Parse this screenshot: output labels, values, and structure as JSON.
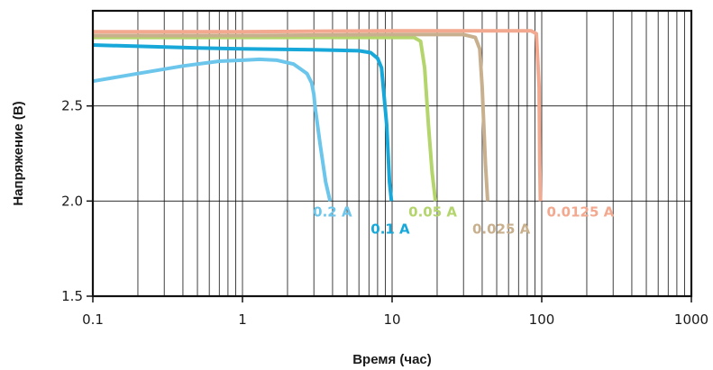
{
  "chart_data": {
    "type": "line",
    "xlabel": "Время (час)",
    "ylabel": "Напряжение (В)",
    "xscale": "log",
    "xlim": [
      0.1,
      1000
    ],
    "ylim": [
      1.5,
      3.0
    ],
    "grid": true,
    "x_ticks": [
      "0.1",
      "1",
      "10",
      "100",
      "1000"
    ],
    "y_ticks": [
      "1.5",
      "2.0",
      "2.5"
    ],
    "series": [
      {
        "name": "0.2 A",
        "color": "#6cc6ec",
        "x": [
          0.1,
          0.2,
          0.4,
          0.7,
          1.0,
          1.3,
          1.7,
          2.2,
          2.7,
          2.9,
          3.0,
          3.05,
          3.3,
          3.6,
          3.85
        ],
        "y": [
          2.63,
          2.67,
          2.71,
          2.735,
          2.74,
          2.745,
          2.74,
          2.72,
          2.67,
          2.62,
          2.56,
          2.5,
          2.3,
          2.1,
          2.0
        ]
      },
      {
        "name": "0.1 A",
        "color": "#17a8d9",
        "x": [
          0.1,
          0.5,
          1,
          3,
          6,
          7.2,
          8.0,
          8.5,
          9.2,
          9.6,
          9.9
        ],
        "y": [
          2.82,
          2.805,
          2.8,
          2.795,
          2.79,
          2.78,
          2.75,
          2.7,
          2.4,
          2.1,
          2.0
        ]
      },
      {
        "name": "0.05 A",
        "color": "#b3d56c",
        "x": [
          0.1,
          1,
          10,
          14,
          15.5,
          16.5,
          17.5,
          18.5,
          19.5
        ],
        "y": [
          2.86,
          2.86,
          2.86,
          2.86,
          2.84,
          2.7,
          2.4,
          2.15,
          2.0
        ]
      },
      {
        "name": "0.025 A",
        "color": "#c8b08e",
        "x": [
          0.1,
          1,
          10,
          30,
          36,
          38.5,
          40,
          42,
          43.5
        ],
        "y": [
          2.87,
          2.87,
          2.875,
          2.875,
          2.86,
          2.8,
          2.6,
          2.2,
          2.0
        ]
      },
      {
        "name": "0.0125 A",
        "color": "#f2a98f",
        "x": [
          0.1,
          1,
          10,
          50,
          85,
          92,
          96,
          97,
          98
        ],
        "y": [
          2.89,
          2.89,
          2.895,
          2.895,
          2.895,
          2.88,
          2.6,
          2.2,
          2.0
        ]
      }
    ]
  }
}
